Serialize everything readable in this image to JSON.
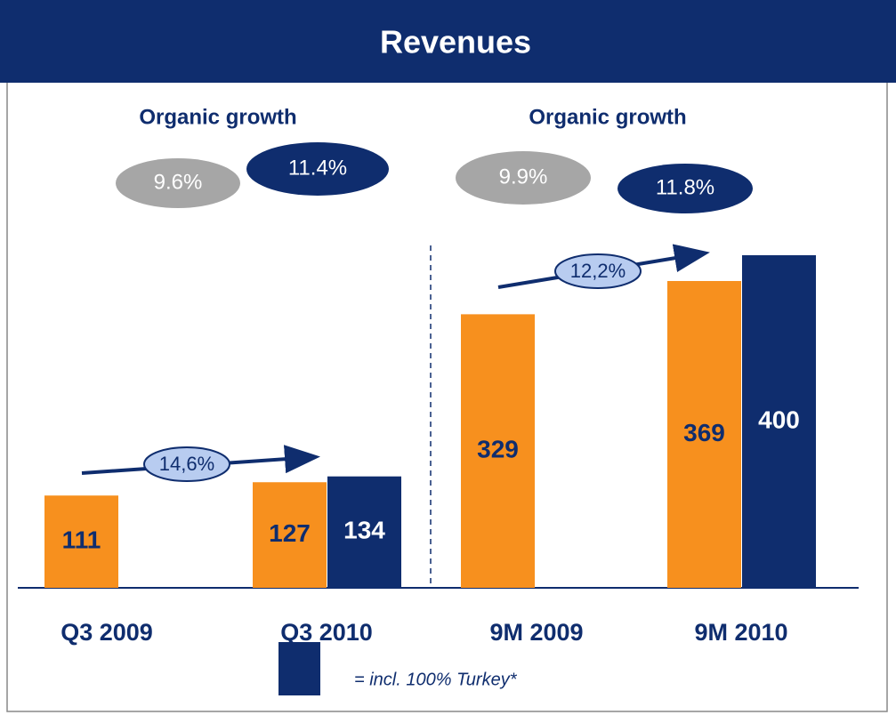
{
  "chart_data": {
    "type": "bar",
    "title": "Revenues",
    "subtitles": [
      "Organic growth",
      "Organic growth"
    ],
    "growth_labels": [
      "9.6%",
      "11.4%",
      "9.9%",
      "11.8%"
    ],
    "growth_colors": [
      "#a6a6a6",
      "#0f2d6e",
      "#a6a6a6",
      "#0f2d6e"
    ],
    "arrow_labels": [
      "14,6%",
      "12,2%"
    ],
    "categories": [
      "Q3 2009",
      "Q3 2010",
      "9M 2009",
      "9M 2010"
    ],
    "series": [
      {
        "color": "#f7901e",
        "values": [
          111,
          127,
          329,
          369
        ]
      },
      {
        "name": "= incl. 100% Turkey*",
        "color": "#0f2d6e",
        "values": [
          null,
          134,
          null,
          400
        ]
      }
    ]
  }
}
